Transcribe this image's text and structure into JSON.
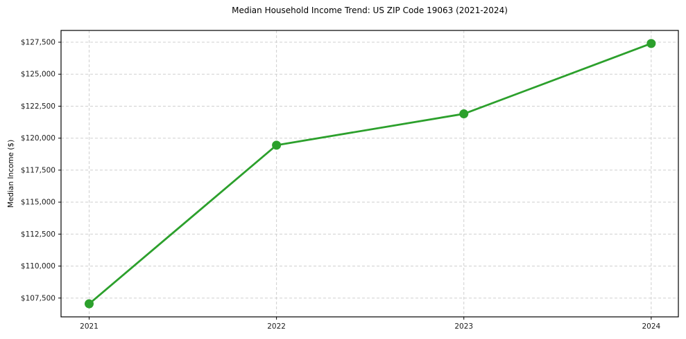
{
  "chart_data": {
    "type": "line",
    "title": "Median Household Income Trend: US ZIP Code 19063 (2021-2024)",
    "xlabel": "",
    "ylabel": "Median Income ($)",
    "categories": [
      "2021",
      "2022",
      "2023",
      "2024"
    ],
    "x": [
      2021,
      2022,
      2023,
      2024
    ],
    "series": [
      {
        "name": "Median Household Income",
        "values": [
          107050,
          119450,
          121900,
          127400
        ],
        "color": "#2ca02c",
        "marker": "circle"
      }
    ],
    "xlim": [
      2020.85,
      2024.145
    ],
    "ylim": [
      106030,
      128420
    ],
    "yticks": [
      107500,
      110000,
      112500,
      115000,
      117500,
      120000,
      122500,
      125000,
      127500
    ],
    "ytick_labels": [
      "$107,500",
      "$110,000",
      "$112,500",
      "$115,000",
      "$117,500",
      "$120,000",
      "$122,500",
      "$125,000",
      "$127,500"
    ],
    "xticks": [
      2021,
      2022,
      2023,
      2024
    ],
    "xtick_labels": [
      "2021",
      "2022",
      "2023",
      "2024"
    ],
    "grid": true,
    "grid_color": "#cfcfcf",
    "axis_color": "#000000",
    "text_color": "#1a1a1a",
    "background": "#ffffff",
    "legend": false,
    "legend_position": "none"
  }
}
